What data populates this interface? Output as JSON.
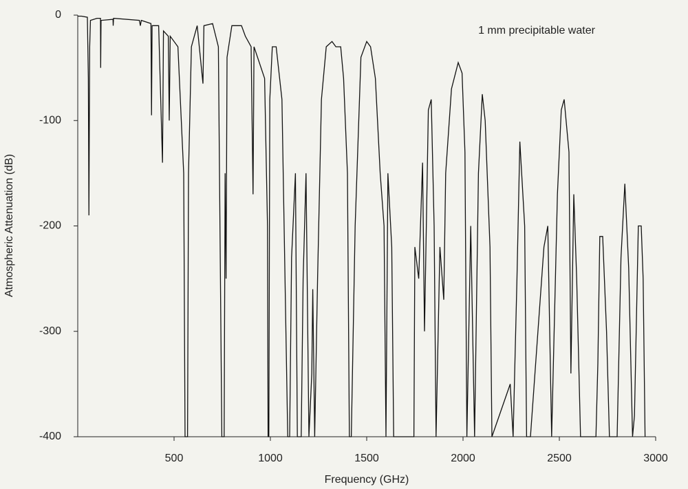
{
  "chart_data": {
    "type": "line",
    "annotation": "1 mm precipitable water",
    "x_label": "Frequency (GHz)",
    "y_label": "Atmospheric Attenuation (dB)",
    "xlim": [
      0,
      3000
    ],
    "ylim": [
      -400,
      0
    ],
    "xticks": [
      500,
      1000,
      1500,
      2000,
      2500,
      3000
    ],
    "yticks": [
      0,
      -100,
      -200,
      -300,
      -400
    ],
    "series": [
      {
        "color": "#111111",
        "x": [
          0,
          20,
          50,
          55,
          58,
          62,
          66,
          100,
          118,
          119,
          121,
          183,
          184,
          186,
          320,
          325,
          330,
          380,
          383,
          386,
          420,
          440,
          445,
          470,
          475,
          480,
          520,
          550,
          557,
          570,
          575,
          590,
          620,
          650,
          655,
          700,
          730,
          748,
          760,
          765,
          770,
          775,
          800,
          850,
          870,
          900,
          910,
          915,
          970,
          985,
          988,
          992,
          997,
          1010,
          1030,
          1060,
          1090,
          1100,
          1110,
          1130,
          1140,
          1160,
          1170,
          1185,
          1200,
          1215,
          1220,
          1230,
          1245,
          1265,
          1290,
          1320,
          1340,
          1365,
          1380,
          1400,
          1410,
          1420,
          1440,
          1470,
          1500,
          1520,
          1545,
          1570,
          1590,
          1600,
          1610,
          1630,
          1640,
          1745,
          1750,
          1770,
          1790,
          1800,
          1820,
          1835,
          1850,
          1860,
          1880,
          1900,
          1910,
          1940,
          1975,
          1995,
          2010,
          2020,
          2040,
          2060,
          2080,
          2100,
          2115,
          2140,
          2150,
          2245,
          2260,
          2280,
          2295,
          2320,
          2330,
          2350,
          2420,
          2440,
          2460,
          2490,
          2510,
          2525,
          2550,
          2560,
          2575,
          2590,
          2610,
          2690,
          2700,
          2710,
          2725,
          2745,
          2760,
          2800,
          2820,
          2840,
          2860,
          2880,
          2890,
          2910,
          2925,
          2935,
          2945
        ],
        "values": [
          -1,
          -1,
          -2,
          -60,
          -190,
          -30,
          -5,
          -3,
          -3,
          -50,
          -5,
          -4,
          -10,
          -3,
          -5,
          -10,
          -5,
          -8,
          -95,
          -10,
          -10,
          -140,
          -15,
          -20,
          -100,
          -20,
          -30,
          -150,
          -400,
          -400,
          -150,
          -30,
          -10,
          -65,
          -10,
          -8,
          -30,
          -400,
          -400,
          -150,
          -250,
          -40,
          -10,
          -10,
          -20,
          -30,
          -170,
          -30,
          -60,
          -200,
          -400,
          -400,
          -80,
          -30,
          -30,
          -80,
          -400,
          -400,
          -230,
          -150,
          -400,
          -400,
          -250,
          -150,
          -400,
          -340,
          -260,
          -400,
          -250,
          -80,
          -30,
          -25,
          -30,
          -30,
          -60,
          -150,
          -400,
          -400,
          -200,
          -40,
          -25,
          -30,
          -60,
          -150,
          -200,
          -400,
          -150,
          -220,
          -400,
          -400,
          -220,
          -250,
          -140,
          -300,
          -90,
          -80,
          -200,
          -400,
          -220,
          -270,
          -150,
          -70,
          -45,
          -55,
          -130,
          -400,
          -200,
          -400,
          -150,
          -75,
          -100,
          -220,
          -400,
          -350,
          -400,
          -250,
          -120,
          -200,
          -400,
          -400,
          -220,
          -200,
          -400,
          -170,
          -90,
          -80,
          -130,
          -340,
          -170,
          -250,
          -400,
          -400,
          -330,
          -210,
          -210,
          -300,
          -400,
          -400,
          -230,
          -160,
          -240,
          -400,
          -380,
          -200,
          -200,
          -250,
          -400
        ]
      }
    ]
  }
}
